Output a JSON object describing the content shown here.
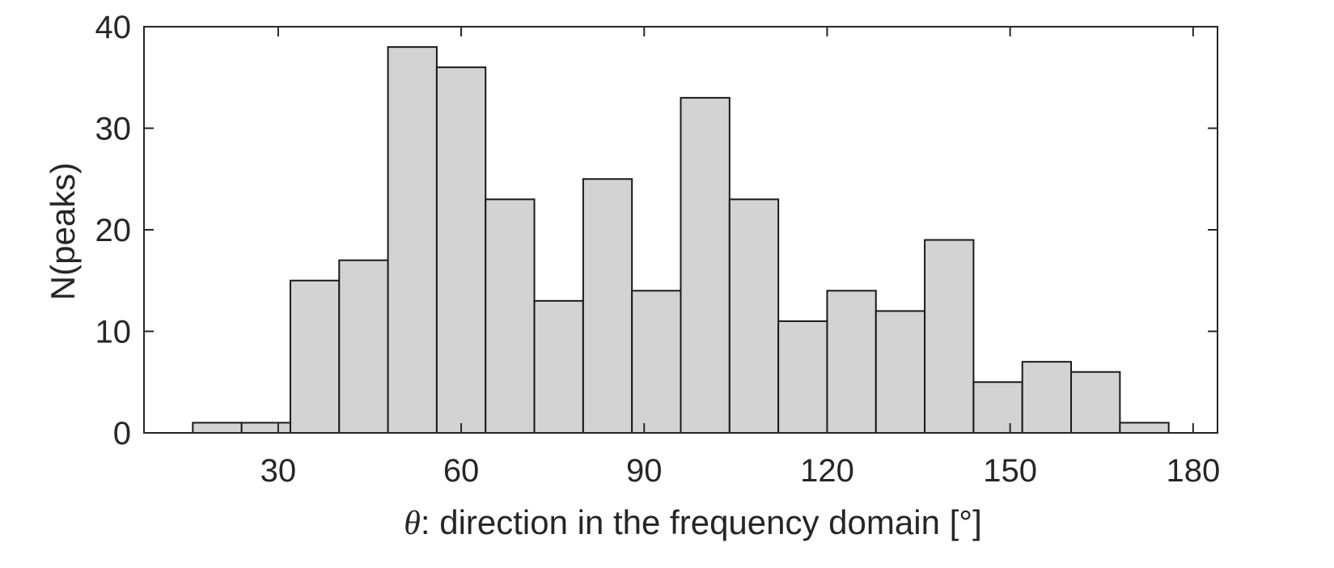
{
  "chart_data": {
    "type": "bar",
    "histogram": true,
    "bin_edges": [
      16,
      24,
      32,
      40,
      48,
      56,
      64,
      72,
      80,
      88,
      96,
      104,
      112,
      120,
      128,
      136,
      144,
      152,
      160,
      168,
      176
    ],
    "values": [
      1,
      1,
      15,
      17,
      38,
      36,
      23,
      13,
      25,
      14,
      33,
      23,
      11,
      14,
      12,
      19,
      5,
      7,
      6,
      1
    ],
    "bar_color": "#d3d3d3",
    "edge_color": "#1a1a1a",
    "xlim": [
      8,
      184
    ],
    "ylim": [
      0,
      40
    ],
    "xticks": [
      30,
      60,
      90,
      120,
      150,
      180
    ],
    "yticks": [
      0,
      10,
      20,
      30,
      40
    ],
    "xlabel_symbol": "θ",
    "xlabel": ": direction in the frequency domain [°]",
    "ylabel": "N(peaks)",
    "grid": false
  }
}
